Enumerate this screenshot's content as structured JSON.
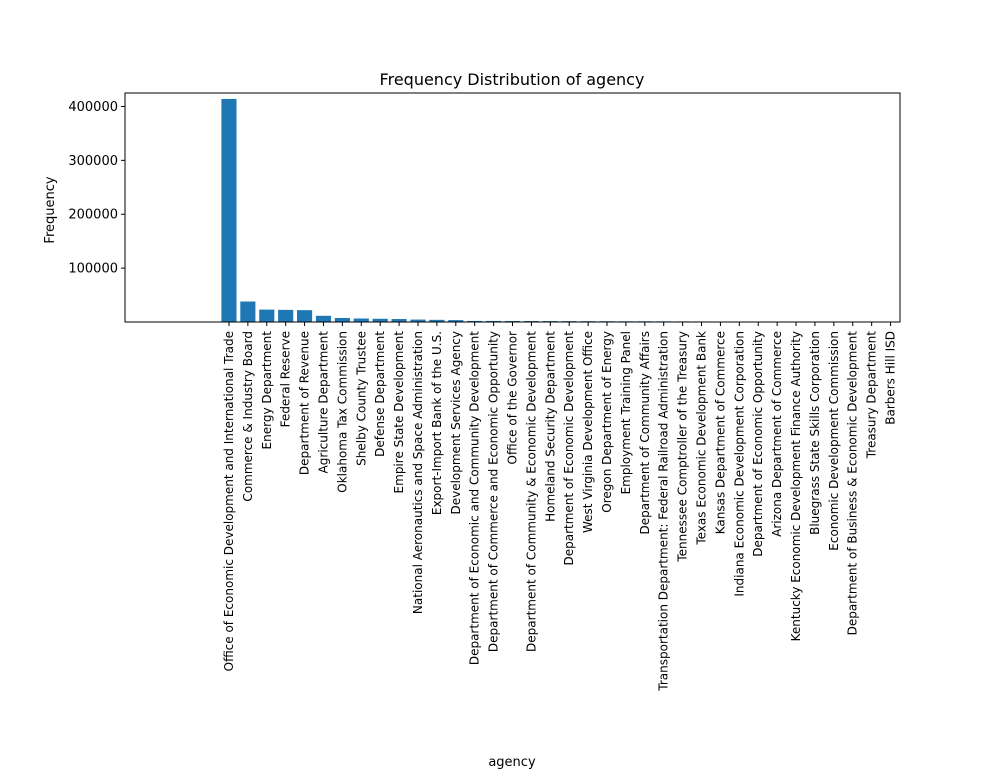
{
  "chart_data": {
    "type": "bar",
    "title": "Frequency Distribution of agency",
    "xlabel": "agency",
    "ylabel": "Frequency",
    "ylim": [
      0,
      425000
    ],
    "yticks": [
      100000,
      200000,
      300000,
      400000
    ],
    "ytick_labels": [
      "100000",
      "200000",
      "300000",
      "400000"
    ],
    "grid": false,
    "legend": "none",
    "bar_color": "#1f77b4",
    "categories": [
      "Office of Economic Development and International Trade",
      "Commerce & Industry Board",
      "Energy Department",
      "Federal Reserve",
      "Department of Revenue",
      "Agriculture Department",
      "Oklahoma Tax Commission",
      "Shelby County Trustee",
      "Defense Department",
      "Empire State Development",
      "National Aeronautics and Space Administration",
      "Export-Import Bank of the U.S.",
      "Development Services Agency",
      "Department of Economic and Community Development",
      "Department of Commerce and Economic Opportunity",
      "Office of the Governor",
      "Department of Community & Economic Development",
      "Homeland Security Department",
      "Department of Economic Development",
      "West Virginia Development Office",
      "Oregon Department of Energy",
      "Employment Training Panel",
      "Department of Community Affairs",
      "Transportation Department: Federal Railroad Administration",
      "Tennessee Comptroller of the Treasury",
      "Texas Economic Development Bank",
      "Kansas Department of Commerce",
      "Indiana Economic Development Corporation",
      "Department of Economic Opportunity",
      "Arizona Department of Commerce",
      "Kentucky Economic Development Finance Authority",
      "Bluegrass State Skills Corporation",
      "Economic Development Commission",
      "Department of Business & Economic Development",
      "Treasury Department",
      "Barbers Hill ISD"
    ],
    "values": [
      414000,
      38000,
      23000,
      22500,
      22000,
      11500,
      7500,
      6500,
      6000,
      5500,
      4500,
      4000,
      3500,
      2000,
      2000,
      1900,
      1800,
      1700,
      1600,
      1500,
      1400,
      1300,
      1300,
      1200,
      1100,
      1000,
      400,
      350,
      300,
      300,
      250,
      200,
      200,
      150,
      100,
      100
    ]
  }
}
